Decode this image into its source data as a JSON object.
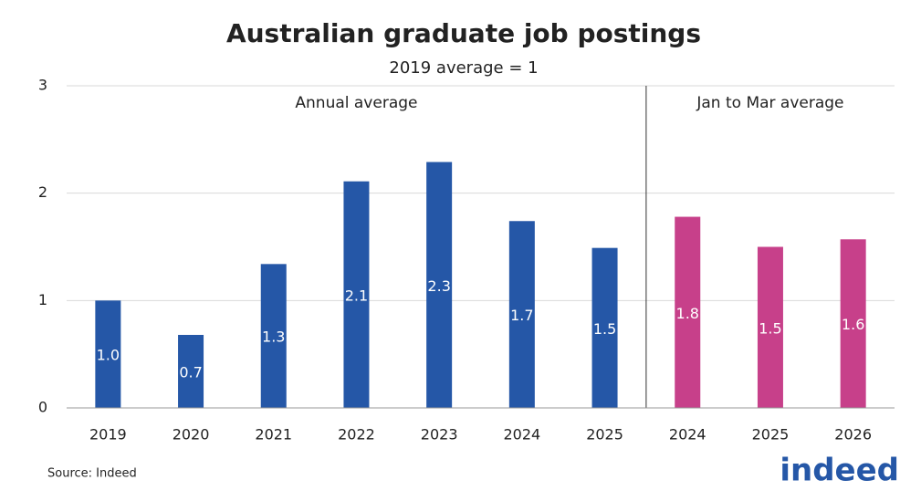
{
  "chart_data": {
    "type": "bar",
    "title": "Australian graduate job postings",
    "subtitle": "2019 average = 1",
    "source": "Source: Indeed",
    "logo": "indeed",
    "categories": [
      "2019",
      "2020",
      "2021",
      "2022",
      "2023",
      "2024",
      "2025",
      "2024",
      "2025",
      "2026"
    ],
    "series": [
      {
        "name": "Annual average",
        "color": "#2557a7",
        "values": [
          1.0,
          0.68,
          1.34,
          2.11,
          2.29,
          1.74,
          1.49,
          null,
          null,
          null
        ],
        "value_labels": [
          "1.0",
          "0.7",
          "1.3",
          "2.1",
          "2.3",
          "1.7",
          "1.5",
          null,
          null,
          null
        ]
      },
      {
        "name": "Jan to Mar average",
        "color": "#c7408a",
        "values": [
          null,
          null,
          null,
          null,
          null,
          null,
          null,
          1.78,
          1.5,
          1.57
        ],
        "value_labels": [
          null,
          null,
          null,
          null,
          null,
          null,
          null,
          "1.8",
          "1.5",
          "1.6"
        ]
      }
    ],
    "ylim": [
      0,
      3
    ],
    "yticks": [
      0,
      1,
      2,
      3
    ],
    "grid": true
  }
}
